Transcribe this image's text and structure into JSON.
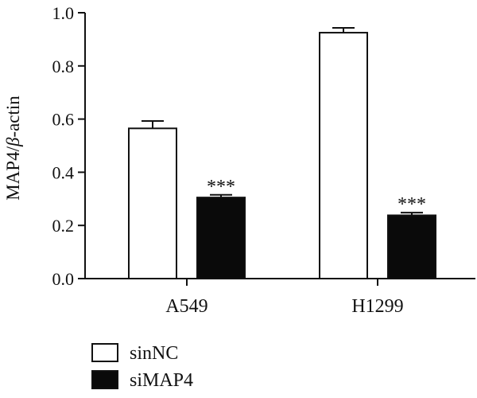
{
  "chart_data": {
    "type": "bar",
    "categories": [
      "A549",
      "H1299"
    ],
    "series": [
      {
        "name": "sinNC",
        "values": [
          0.565,
          0.925
        ],
        "errors": [
          0.028,
          0.018
        ],
        "color": "#ffffff"
      },
      {
        "name": "siMAP4",
        "values": [
          0.305,
          0.238
        ],
        "errors": [
          0.01,
          0.01
        ],
        "color": "#0a0a0a"
      }
    ],
    "significance": [
      [
        "",
        "***"
      ],
      [
        "",
        "***"
      ]
    ],
    "ylabel_prefix": "MAP4/",
    "ylabel_greek": "β",
    "ylabel_suffix": "-actin",
    "ylim": [
      0.0,
      1.0
    ],
    "yticks": [
      "0.0",
      "0.2",
      "0.4",
      "0.6",
      "0.8",
      "1.0"
    ],
    "legend_position": "bottom-left"
  }
}
